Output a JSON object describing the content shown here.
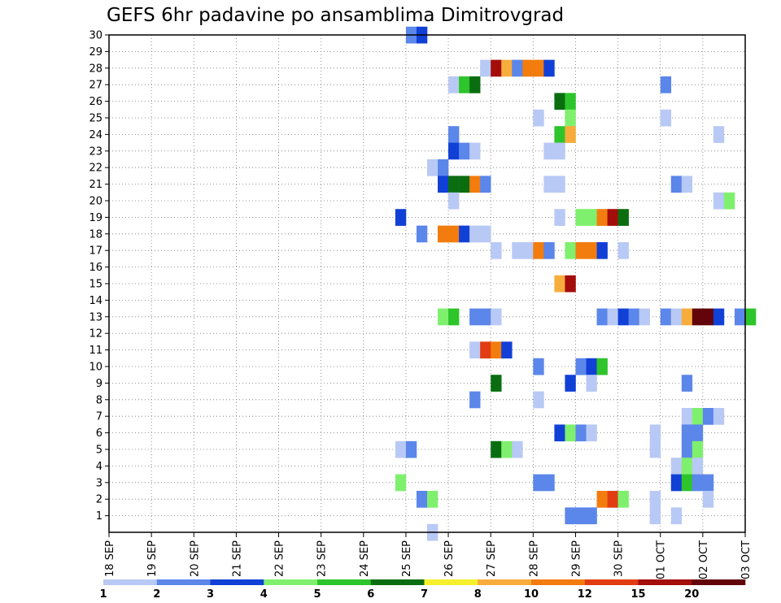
{
  "chart_data": {
    "type": "heatmap",
    "title": "GEFS 6hr padavine po ansamblima Dimitrovgrad",
    "ylabel": "",
    "xlabel": "",
    "y_members": [
      1,
      2,
      3,
      4,
      5,
      6,
      7,
      8,
      9,
      10,
      11,
      12,
      13,
      14,
      15,
      16,
      17,
      18,
      19,
      20,
      21,
      22,
      23,
      24,
      25,
      26,
      27,
      28,
      29,
      30
    ],
    "x_tick_labels": [
      "18 SEP",
      "19 SEP",
      "20 SEP",
      "21 SEP",
      "22 SEP",
      "23 SEP",
      "24 SEP",
      "25 SEP",
      "26 SEP",
      "27 SEP",
      "28 SEP",
      "29 SEP",
      "30 SEP",
      "01 OCT",
      "02 OCT",
      "03 OCT"
    ],
    "x_range_days": [
      0,
      15
    ],
    "steps_per_day": 4,
    "grid": "dotted",
    "colorbar": {
      "tick_labels": [
        "1",
        "2",
        "3",
        "4",
        "5",
        "6",
        "7",
        "8",
        "10",
        "12",
        "15",
        "20"
      ],
      "colors": [
        "#b8c9f5",
        "#5b86ea",
        "#1140d6",
        "#7ff06e",
        "#2ec42b",
        "#0a6e10",
        "#f5f02b",
        "#f7ad3c",
        "#f27c0e",
        "#e23c12",
        "#a30d0a",
        "#62040a"
      ]
    },
    "cells": [
      [
        30,
        28,
        1
      ],
      [
        30,
        29,
        2
      ],
      [
        28,
        35,
        0
      ],
      [
        28,
        36,
        10
      ],
      [
        28,
        37,
        7
      ],
      [
        28,
        38,
        1
      ],
      [
        28,
        39,
        8
      ],
      [
        28,
        40,
        8
      ],
      [
        28,
        41,
        2
      ],
      [
        27,
        32,
        0
      ],
      [
        27,
        33,
        4
      ],
      [
        27,
        34,
        5
      ],
      [
        27,
        52,
        1
      ],
      [
        26,
        42,
        5
      ],
      [
        26,
        43,
        4
      ],
      [
        25,
        40,
        0
      ],
      [
        25,
        43,
        3
      ],
      [
        25,
        52,
        0
      ],
      [
        24,
        32,
        1
      ],
      [
        24,
        42,
        4
      ],
      [
        24,
        43,
        7
      ],
      [
        24,
        57,
        0
      ],
      [
        23,
        32,
        2
      ],
      [
        23,
        33,
        1
      ],
      [
        23,
        34,
        0
      ],
      [
        23,
        41,
        0
      ],
      [
        23,
        42,
        0
      ],
      [
        22,
        30,
        0
      ],
      [
        22,
        31,
        1
      ],
      [
        21,
        31,
        2
      ],
      [
        21,
        32,
        5
      ],
      [
        21,
        33,
        5
      ],
      [
        21,
        34,
        8
      ],
      [
        21,
        35,
        1
      ],
      [
        21,
        41,
        0
      ],
      [
        21,
        42,
        0
      ],
      [
        21,
        53,
        1
      ],
      [
        21,
        54,
        0
      ],
      [
        20,
        32,
        0
      ],
      [
        20,
        57,
        0
      ],
      [
        20,
        58,
        3
      ],
      [
        19,
        27,
        2
      ],
      [
        19,
        42,
        0
      ],
      [
        19,
        44,
        3
      ],
      [
        19,
        45,
        3
      ],
      [
        19,
        46,
        8
      ],
      [
        19,
        47,
        10
      ],
      [
        19,
        48,
        5
      ],
      [
        18,
        29,
        1
      ],
      [
        18,
        31,
        8
      ],
      [
        18,
        32,
        8
      ],
      [
        18,
        33,
        2
      ],
      [
        18,
        34,
        0
      ],
      [
        18,
        35,
        0
      ],
      [
        17,
        36,
        0
      ],
      [
        17,
        38,
        0
      ],
      [
        17,
        39,
        0
      ],
      [
        17,
        40,
        8
      ],
      [
        17,
        41,
        1
      ],
      [
        17,
        43,
        3
      ],
      [
        17,
        44,
        8
      ],
      [
        17,
        45,
        8
      ],
      [
        17,
        46,
        2
      ],
      [
        17,
        48,
        0
      ],
      [
        15,
        42,
        7
      ],
      [
        15,
        43,
        10
      ],
      [
        13,
        31,
        3
      ],
      [
        13,
        32,
        4
      ],
      [
        13,
        34,
        1
      ],
      [
        13,
        35,
        1
      ],
      [
        13,
        36,
        0
      ],
      [
        13,
        46,
        1
      ],
      [
        13,
        47,
        0
      ],
      [
        13,
        48,
        2
      ],
      [
        13,
        49,
        1
      ],
      [
        13,
        50,
        0
      ],
      [
        13,
        52,
        1
      ],
      [
        13,
        53,
        0
      ],
      [
        13,
        54,
        7
      ],
      [
        13,
        55,
        11
      ],
      [
        13,
        56,
        11
      ],
      [
        13,
        57,
        2
      ],
      [
        13,
        59,
        1
      ],
      [
        13,
        60,
        4
      ],
      [
        11,
        34,
        0
      ],
      [
        11,
        35,
        9
      ],
      [
        11,
        36,
        8
      ],
      [
        11,
        37,
        2
      ],
      [
        10,
        40,
        1
      ],
      [
        10,
        44,
        1
      ],
      [
        10,
        45,
        2
      ],
      [
        10,
        46,
        4
      ],
      [
        9,
        36,
        5
      ],
      [
        9,
        43,
        2
      ],
      [
        9,
        45,
        0
      ],
      [
        9,
        54,
        1
      ],
      [
        8,
        34,
        1
      ],
      [
        8,
        40,
        0
      ],
      [
        7,
        54,
        0
      ],
      [
        7,
        55,
        3
      ],
      [
        7,
        56,
        1
      ],
      [
        7,
        57,
        0
      ],
      [
        6,
        42,
        2
      ],
      [
        6,
        43,
        3
      ],
      [
        6,
        44,
        1
      ],
      [
        6,
        45,
        0
      ],
      [
        6,
        51,
        0
      ],
      [
        6,
        54,
        1
      ],
      [
        6,
        55,
        1
      ],
      [
        5,
        27,
        0
      ],
      [
        5,
        28,
        1
      ],
      [
        5,
        36,
        5
      ],
      [
        5,
        37,
        3
      ],
      [
        5,
        38,
        0
      ],
      [
        5,
        51,
        0
      ],
      [
        5,
        54,
        1
      ],
      [
        5,
        55,
        3
      ],
      [
        4,
        53,
        0
      ],
      [
        4,
        54,
        3
      ],
      [
        4,
        55,
        0
      ],
      [
        3,
        27,
        3
      ],
      [
        3,
        40,
        1
      ],
      [
        3,
        41,
        1
      ],
      [
        3,
        53,
        2
      ],
      [
        3,
        54,
        4
      ],
      [
        3,
        55,
        1
      ],
      [
        3,
        56,
        1
      ],
      [
        2,
        29,
        1
      ],
      [
        2,
        30,
        3
      ],
      [
        2,
        46,
        8
      ],
      [
        2,
        47,
        9
      ],
      [
        2,
        48,
        3
      ],
      [
        2,
        51,
        0
      ],
      [
        2,
        56,
        0
      ],
      [
        1,
        43,
        1
      ],
      [
        1,
        44,
        1
      ],
      [
        1,
        45,
        1
      ],
      [
        1,
        51,
        0
      ],
      [
        1,
        53,
        0
      ],
      [
        0,
        30,
        0
      ]
    ]
  }
}
